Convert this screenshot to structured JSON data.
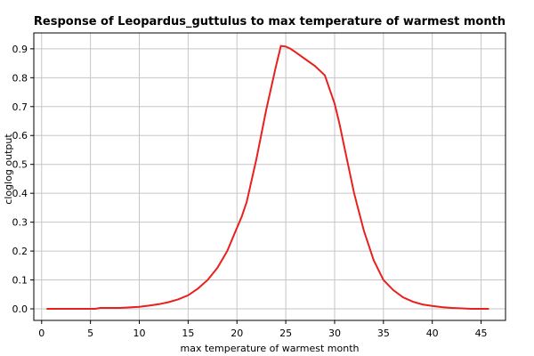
{
  "chart_data": {
    "type": "line",
    "title": "Response of Leopardus_guttulus to max temperature of warmest month",
    "xlabel": "max temperature of warmest month",
    "ylabel": "cloglog output",
    "xlim": [
      -0.8,
      47.5
    ],
    "ylim": [
      -0.04,
      0.955
    ],
    "xticks": [
      0,
      5,
      10,
      15,
      20,
      25,
      30,
      35,
      40,
      45
    ],
    "yticks": [
      0.0,
      0.1,
      0.2,
      0.3,
      0.4,
      0.5,
      0.6,
      0.7,
      0.8,
      0.9
    ],
    "ytick_labels": [
      "0.0",
      "0.1",
      "0.2",
      "0.3",
      "0.4",
      "0.5",
      "0.6",
      "0.7",
      "0.8",
      "0.9"
    ],
    "grid": true,
    "legend": false,
    "series": [
      {
        "color": "#e8201e",
        "x": [
          0.5,
          3,
          5.5,
          6,
          8,
          9,
          10,
          11,
          12,
          13,
          14,
          15,
          16,
          17,
          18,
          19,
          20,
          20.5,
          21,
          22,
          23,
          24,
          24.5,
          25,
          25.5,
          26,
          27,
          28,
          29,
          30,
          30.5,
          31,
          32,
          33,
          34,
          35,
          36,
          37,
          38,
          39,
          40,
          41,
          42,
          44,
          45.8
        ],
        "y": [
          0.0,
          0.0,
          0.0,
          0.003,
          0.003,
          0.005,
          0.007,
          0.011,
          0.016,
          0.023,
          0.033,
          0.047,
          0.07,
          0.1,
          0.142,
          0.2,
          0.28,
          0.32,
          0.37,
          0.52,
          0.69,
          0.84,
          0.91,
          0.908,
          0.9,
          0.888,
          0.864,
          0.84,
          0.808,
          0.71,
          0.64,
          0.56,
          0.4,
          0.27,
          0.168,
          0.1,
          0.065,
          0.04,
          0.025,
          0.015,
          0.01,
          0.006,
          0.003,
          0.0,
          0.0
        ]
      }
    ]
  }
}
